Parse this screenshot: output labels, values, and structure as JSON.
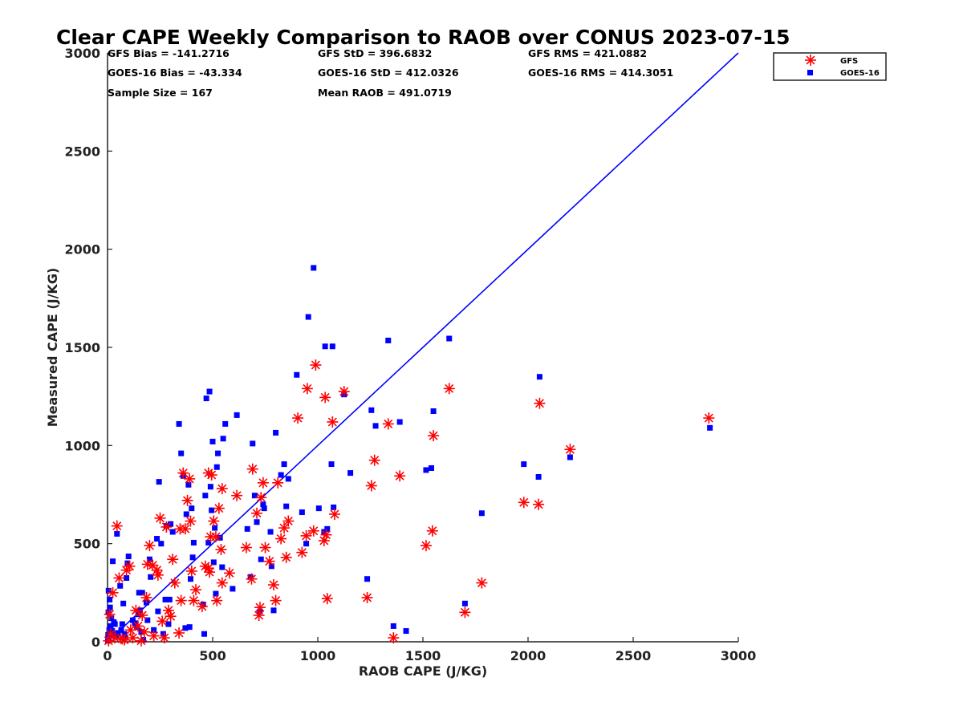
{
  "chart_data": {
    "type": "scatter",
    "title": "Clear CAPE Weekly Comparison to RAOB over CONUS 2023-07-15",
    "xlabel": "RAOB CAPE (J/KG)",
    "ylabel": "Measured CAPE (J/KG)",
    "xlim": [
      0,
      3000
    ],
    "ylim": [
      0,
      3000
    ],
    "xticks": [
      "0",
      "500",
      "1000",
      "1500",
      "2000",
      "2500",
      "3000"
    ],
    "yticks": [
      "0",
      "500",
      "1000",
      "1500",
      "2000",
      "2500",
      "3000"
    ],
    "grid": false,
    "legend_position": "top-right",
    "stats": [
      "GFS Bias = -141.2716",
      "GFS StD = 396.6832",
      "GFS RMS = 421.0882",
      "GOES-16 Bias = -43.334",
      "GOES-16 StD = 412.0326",
      "GOES-16 RMS = 414.3051",
      "Sample Size = 167",
      "Mean RAOB = 491.0719"
    ],
    "reference_line": {
      "from": [
        0,
        0
      ],
      "to": [
        3000,
        3000
      ],
      "color": "#0000ff"
    },
    "series": [
      {
        "name": "GFS",
        "marker": "asterisk",
        "color": "#ff0000",
        "points": [
          [
            2860,
            1140
          ],
          [
            2200,
            980
          ],
          [
            2055,
            1215
          ],
          [
            2050,
            700
          ],
          [
            1980,
            710
          ],
          [
            1780,
            300
          ],
          [
            1700,
            150
          ],
          [
            1625,
            1290
          ],
          [
            1550,
            1050
          ],
          [
            1545,
            565
          ],
          [
            1515,
            490
          ],
          [
            1390,
            845
          ],
          [
            1360,
            20
          ],
          [
            1335,
            1110
          ],
          [
            1270,
            925
          ],
          [
            1255,
            795
          ],
          [
            1235,
            225
          ],
          [
            1125,
            1275
          ],
          [
            1080,
            650
          ],
          [
            1070,
            1120
          ],
          [
            1045,
            220
          ],
          [
            1040,
            545
          ],
          [
            1035,
            1245
          ],
          [
            1030,
            515
          ],
          [
            990,
            1410
          ],
          [
            980,
            565
          ],
          [
            950,
            1290
          ],
          [
            945,
            540
          ],
          [
            925,
            455
          ],
          [
            905,
            1140
          ],
          [
            860,
            615
          ],
          [
            850,
            430
          ],
          [
            840,
            580
          ],
          [
            825,
            525
          ],
          [
            810,
            810
          ],
          [
            800,
            210
          ],
          [
            790,
            290
          ],
          [
            770,
            410
          ],
          [
            750,
            480
          ],
          [
            740,
            810
          ],
          [
            730,
            735
          ],
          [
            725,
            175
          ],
          [
            720,
            135
          ],
          [
            710,
            655
          ],
          [
            690,
            880
          ],
          [
            685,
            320
          ],
          [
            660,
            480
          ],
          [
            615,
            745
          ],
          [
            580,
            350
          ],
          [
            545,
            780
          ],
          [
            545,
            300
          ],
          [
            540,
            470
          ],
          [
            530,
            680
          ],
          [
            520,
            210
          ],
          [
            515,
            535
          ],
          [
            505,
            615
          ],
          [
            495,
            850
          ],
          [
            490,
            535
          ],
          [
            485,
            355
          ],
          [
            480,
            375
          ],
          [
            480,
            860
          ],
          [
            465,
            385
          ],
          [
            450,
            180
          ],
          [
            420,
            265
          ],
          [
            410,
            210
          ],
          [
            400,
            360
          ],
          [
            395,
            615
          ],
          [
            390,
            830
          ],
          [
            380,
            720
          ],
          [
            370,
            575
          ],
          [
            360,
            860
          ],
          [
            350,
            210
          ],
          [
            345,
            575
          ],
          [
            340,
            45
          ],
          [
            320,
            300
          ],
          [
            310,
            420
          ],
          [
            300,
            130
          ],
          [
            290,
            160
          ],
          [
            280,
            585
          ],
          [
            270,
            20
          ],
          [
            260,
            105
          ],
          [
            250,
            630
          ],
          [
            240,
            340
          ],
          [
            235,
            365
          ],
          [
            220,
            30
          ],
          [
            215,
            390
          ],
          [
            200,
            490
          ],
          [
            190,
            395
          ],
          [
            185,
            225
          ],
          [
            175,
            50
          ],
          [
            165,
            135
          ],
          [
            160,
            5
          ],
          [
            145,
            80
          ],
          [
            135,
            160
          ],
          [
            120,
            20
          ],
          [
            105,
            385
          ],
          [
            90,
            365
          ],
          [
            80,
            10
          ],
          [
            70,
            15
          ],
          [
            55,
            325
          ],
          [
            45,
            590
          ],
          [
            35,
            20
          ],
          [
            25,
            250
          ],
          [
            15,
            40
          ],
          [
            10,
            140
          ],
          [
            5,
            5
          ],
          [
            110,
            60
          ]
        ]
      },
      {
        "name": "GOES-16",
        "marker": "square",
        "color": "#0000ff",
        "points": [
          [
            2865,
            1090
          ],
          [
            2200,
            940
          ],
          [
            2055,
            1350
          ],
          [
            2050,
            840
          ],
          [
            1980,
            905
          ],
          [
            1780,
            655
          ],
          [
            1700,
            195
          ],
          [
            1625,
            1545
          ],
          [
            1550,
            1175
          ],
          [
            1540,
            885
          ],
          [
            1515,
            875
          ],
          [
            1420,
            55
          ],
          [
            1390,
            1120
          ],
          [
            1360,
            80
          ],
          [
            1335,
            1535
          ],
          [
            1275,
            1100
          ],
          [
            1255,
            1180
          ],
          [
            1235,
            320
          ],
          [
            1155,
            860
          ],
          [
            1125,
            1260
          ],
          [
            1075,
            685
          ],
          [
            1070,
            1505
          ],
          [
            1065,
            905
          ],
          [
            1045,
            575
          ],
          [
            1035,
            1505
          ],
          [
            1030,
            560
          ],
          [
            1005,
            680
          ],
          [
            980,
            1905
          ],
          [
            955,
            1655
          ],
          [
            945,
            500
          ],
          [
            925,
            660
          ],
          [
            900,
            1360
          ],
          [
            860,
            830
          ],
          [
            850,
            690
          ],
          [
            840,
            905
          ],
          [
            825,
            850
          ],
          [
            800,
            1065
          ],
          [
            790,
            160
          ],
          [
            780,
            385
          ],
          [
            775,
            560
          ],
          [
            745,
            680
          ],
          [
            740,
            700
          ],
          [
            730,
            420
          ],
          [
            725,
            155
          ],
          [
            710,
            610
          ],
          [
            700,
            745
          ],
          [
            690,
            1010
          ],
          [
            680,
            330
          ],
          [
            665,
            575
          ],
          [
            615,
            1155
          ],
          [
            595,
            270
          ],
          [
            560,
            1110
          ],
          [
            550,
            1035
          ],
          [
            545,
            380
          ],
          [
            535,
            530
          ],
          [
            525,
            960
          ],
          [
            520,
            890
          ],
          [
            515,
            245
          ],
          [
            510,
            580
          ],
          [
            505,
            405
          ],
          [
            500,
            1020
          ],
          [
            495,
            670
          ],
          [
            490,
            790
          ],
          [
            485,
            1275
          ],
          [
            480,
            505
          ],
          [
            470,
            1240
          ],
          [
            465,
            745
          ],
          [
            460,
            40
          ],
          [
            455,
            190
          ],
          [
            410,
            505
          ],
          [
            405,
            430
          ],
          [
            400,
            680
          ],
          [
            395,
            320
          ],
          [
            390,
            75
          ],
          [
            385,
            800
          ],
          [
            375,
            650
          ],
          [
            370,
            70
          ],
          [
            360,
            845
          ],
          [
            350,
            960
          ],
          [
            340,
            1110
          ],
          [
            310,
            560
          ],
          [
            300,
            600
          ],
          [
            295,
            215
          ],
          [
            290,
            90
          ],
          [
            280,
            590
          ],
          [
            275,
            215
          ],
          [
            265,
            40
          ],
          [
            255,
            500
          ],
          [
            245,
            815
          ],
          [
            240,
            155
          ],
          [
            235,
            525
          ],
          [
            220,
            60
          ],
          [
            205,
            330
          ],
          [
            200,
            420
          ],
          [
            190,
            110
          ],
          [
            185,
            200
          ],
          [
            170,
            10
          ],
          [
            165,
            250
          ],
          [
            160,
            50
          ],
          [
            155,
            160
          ],
          [
            150,
            250
          ],
          [
            145,
            140
          ],
          [
            140,
            75
          ],
          [
            130,
            95
          ],
          [
            120,
            110
          ],
          [
            100,
            435
          ],
          [
            95,
            400
          ],
          [
            90,
            325
          ],
          [
            85,
            20
          ],
          [
            80,
            40
          ],
          [
            75,
            195
          ],
          [
            70,
            90
          ],
          [
            65,
            60
          ],
          [
            60,
            285
          ],
          [
            50,
            45
          ],
          [
            45,
            550
          ],
          [
            40,
            25
          ],
          [
            35,
            90
          ],
          [
            30,
            100
          ],
          [
            25,
            410
          ],
          [
            22,
            55
          ],
          [
            20,
            30
          ],
          [
            18,
            120
          ],
          [
            15,
            80
          ],
          [
            12,
            175
          ],
          [
            10,
            215
          ],
          [
            8,
            60
          ],
          [
            6,
            15
          ],
          [
            5,
            260
          ],
          [
            4,
            150
          ],
          [
            3,
            35
          ],
          [
            2,
            5
          ]
        ]
      }
    ]
  }
}
